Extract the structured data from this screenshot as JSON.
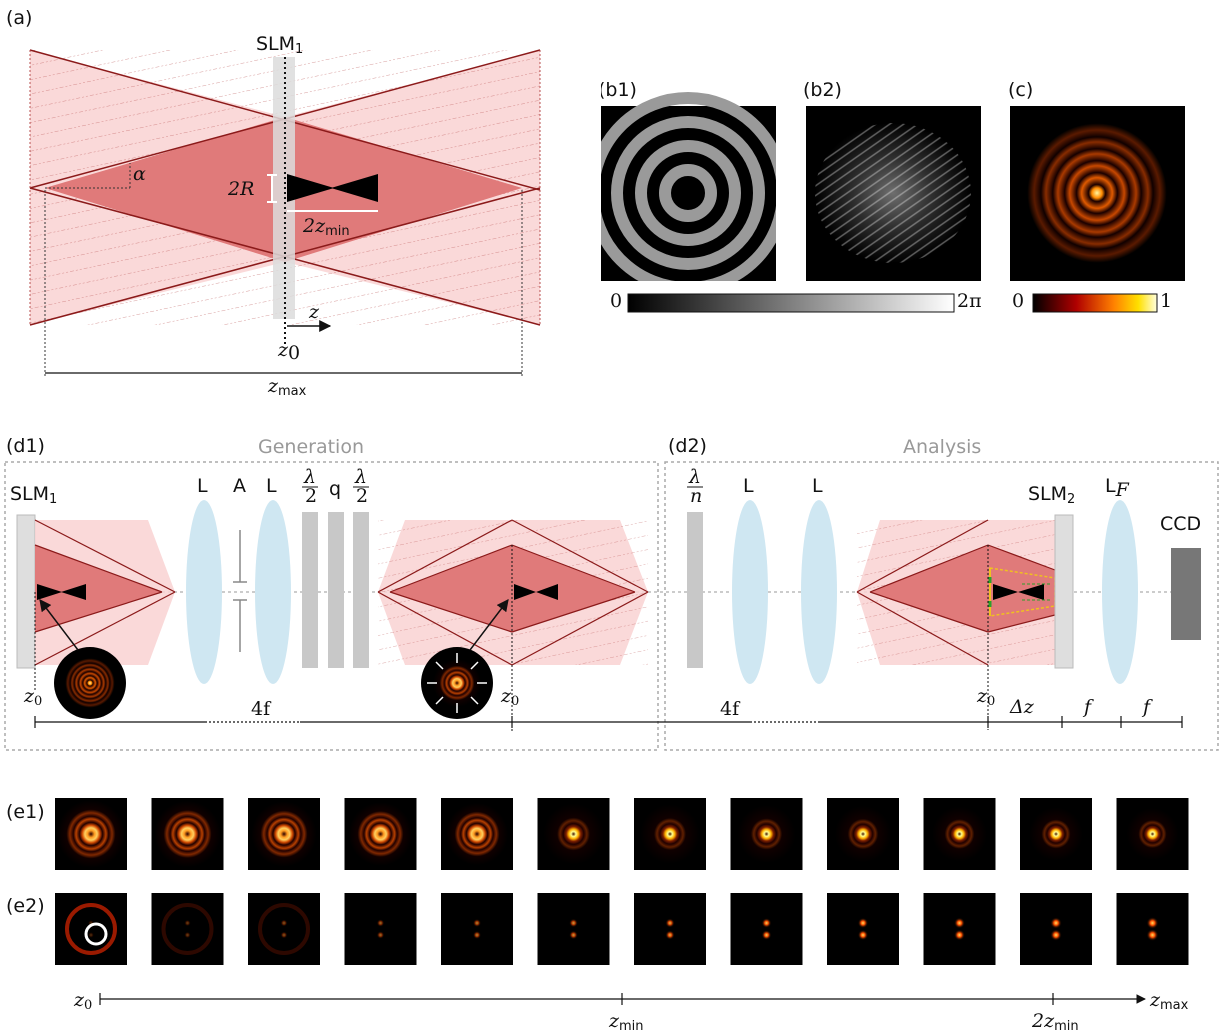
{
  "panel_labels": {
    "a": "(a)",
    "b1": "(b1)",
    "b2": "(b2)",
    "c": "(c)",
    "d1": "(d1)",
    "d2": "(d2)",
    "e1": "(e1)",
    "e2": "(e2)"
  },
  "panel_a": {
    "slm": "SLM",
    "slm_sub": "1",
    "alpha": "α",
    "radius": "2R",
    "zmin_coef": "2z",
    "zmin_sub": "min",
    "z": "z",
    "z0": "z",
    "z0_sub": "0",
    "zmax": "z",
    "zmax_sub": "max"
  },
  "colorbars": {
    "phase_min": "0",
    "phase_max": "2π",
    "amp_min": "0",
    "amp_max": "1"
  },
  "panel_d1": {
    "title": "Generation",
    "slm": "SLM",
    "slm_sub": "1",
    "L1": "L",
    "A": "A",
    "L2": "L",
    "half_wave_num": "λ",
    "half_wave_den": "2",
    "q": "q",
    "half_wave2_num": "λ",
    "half_wave2_den": "2",
    "z0_left": "z",
    "z0_left_sub": "0",
    "four_f": "4f",
    "z0_right": "z",
    "z0_right_sub": "0"
  },
  "panel_d2": {
    "title": "Analysis",
    "plate_num": "λ",
    "plate_den": "n",
    "L1": "L",
    "L2": "L",
    "slm": "SLM",
    "slm_sub": "2",
    "lf": "L",
    "lf_sub": "F",
    "ccd": "CCD",
    "four_f": "4f",
    "z0": "z",
    "z0_sub": "0",
    "dz": "Δz",
    "f1": "f",
    "f2": "f"
  },
  "axis_e": {
    "start": "z",
    "start_sub": "0",
    "mid": "z",
    "mid_sub": "min",
    "mid2_coef": "2z",
    "mid2_sub": "min",
    "end": "z",
    "end_sub": "max"
  },
  "colors": {
    "beam_dark": "#8b1a1a",
    "beam_fill": "#f7c4c4",
    "overlap_fill": "#e07a7a",
    "lens": "#cfe7f2",
    "plate": "#c8c8c8",
    "dashed_box": "#aaaaaa"
  },
  "icons": [
    "axicon-cone-icon",
    "lens-icon",
    "wave-plate-icon",
    "ccd-icon",
    "bessel-beam-image"
  ]
}
